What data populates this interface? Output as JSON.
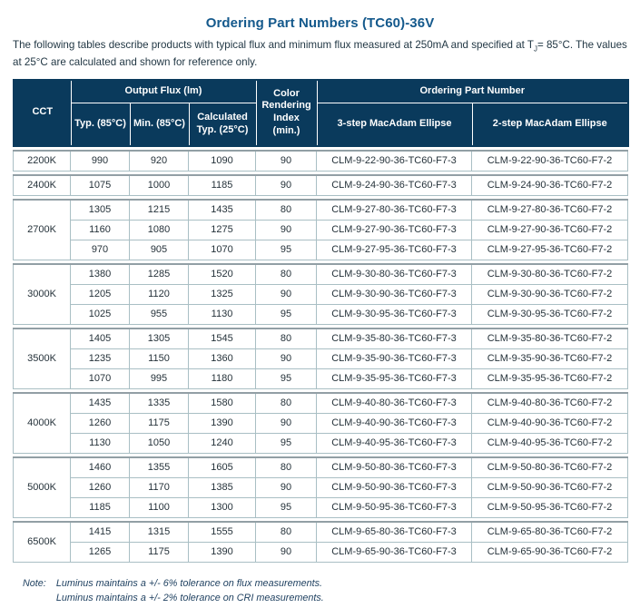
{
  "title": "Ordering Part Numbers (TC60)-36V",
  "intro": {
    "part1": "The following tables describe products with typical flux and minimum flux measured at 250mA and specified at T",
    "sub": "J",
    "part2": "= 85°C. The values at 25°C are calculated and shown for reference only."
  },
  "header": {
    "cct": "CCT",
    "output_flux": "Output Flux (lm)",
    "typ": "Typ. (85°C)",
    "min": "Min. (85°C)",
    "calc": "Calculated Typ. (25°C)",
    "cri": "Color Rendering Index (min.)",
    "opn": "Ordering Part Number",
    "step3": "3-step MacAdam Ellipse",
    "step2": "2-step MacAdam Ellipse"
  },
  "groups": [
    {
      "cct": "2200K",
      "rows": [
        {
          "typ": "990",
          "min": "920",
          "calc": "1090",
          "cri": "90",
          "pn3": "CLM-9-22-90-36-TC60-F7-3",
          "pn2": "CLM-9-22-90-36-TC60-F7-2"
        }
      ]
    },
    {
      "cct": "2400K",
      "rows": [
        {
          "typ": "1075",
          "min": "1000",
          "calc": "1185",
          "cri": "90",
          "pn3": "CLM-9-24-90-36-TC60-F7-3",
          "pn2": "CLM-9-24-90-36-TC60-F7-2"
        }
      ]
    },
    {
      "cct": "2700K",
      "rows": [
        {
          "typ": "1305",
          "min": "1215",
          "calc": "1435",
          "cri": "80",
          "pn3": "CLM-9-27-80-36-TC60-F7-3",
          "pn2": "CLM-9-27-80-36-TC60-F7-2"
        },
        {
          "typ": "1160",
          "min": "1080",
          "calc": "1275",
          "cri": "90",
          "pn3": "CLM-9-27-90-36-TC60-F7-3",
          "pn2": "CLM-9-27-90-36-TC60-F7-2"
        },
        {
          "typ": "970",
          "min": "905",
          "calc": "1070",
          "cri": "95",
          "pn3": "CLM-9-27-95-36-TC60-F7-3",
          "pn2": "CLM-9-27-95-36-TC60-F7-2"
        }
      ]
    },
    {
      "cct": "3000K",
      "rows": [
        {
          "typ": "1380",
          "min": "1285",
          "calc": "1520",
          "cri": "80",
          "pn3": "CLM-9-30-80-36-TC60-F7-3",
          "pn2": "CLM-9-30-80-36-TC60-F7-2"
        },
        {
          "typ": "1205",
          "min": "1120",
          "calc": "1325",
          "cri": "90",
          "pn3": "CLM-9-30-90-36-TC60-F7-3",
          "pn2": "CLM-9-30-90-36-TC60-F7-2"
        },
        {
          "typ": "1025",
          "min": "955",
          "calc": "1130",
          "cri": "95",
          "pn3": "CLM-9-30-95-36-TC60-F7-3",
          "pn2": "CLM-9-30-95-36-TC60-F7-2"
        }
      ]
    },
    {
      "cct": "3500K",
      "rows": [
        {
          "typ": "1405",
          "min": "1305",
          "calc": "1545",
          "cri": "80",
          "pn3": "CLM-9-35-80-36-TC60-F7-3",
          "pn2": "CLM-9-35-80-36-TC60-F7-2"
        },
        {
          "typ": "1235",
          "min": "1150",
          "calc": "1360",
          "cri": "90",
          "pn3": "CLM-9-35-90-36-TC60-F7-3",
          "pn2": "CLM-9-35-90-36-TC60-F7-2"
        },
        {
          "typ": "1070",
          "min": "995",
          "calc": "1180",
          "cri": "95",
          "pn3": "CLM-9-35-95-36-TC60-F7-3",
          "pn2": "CLM-9-35-95-36-TC60-F7-2"
        }
      ]
    },
    {
      "cct": "4000K",
      "rows": [
        {
          "typ": "1435",
          "min": "1335",
          "calc": "1580",
          "cri": "80",
          "pn3": "CLM-9-40-80-36-TC60-F7-3",
          "pn2": "CLM-9-40-80-36-TC60-F7-2"
        },
        {
          "typ": "1260",
          "min": "1175",
          "calc": "1390",
          "cri": "90",
          "pn3": "CLM-9-40-90-36-TC60-F7-3",
          "pn2": "CLM-9-40-90-36-TC60-F7-2"
        },
        {
          "typ": "1130",
          "min": "1050",
          "calc": "1240",
          "cri": "95",
          "pn3": "CLM-9-40-95-36-TC60-F7-3",
          "pn2": "CLM-9-40-95-36-TC60-F7-2"
        }
      ]
    },
    {
      "cct": "5000K",
      "rows": [
        {
          "typ": "1460",
          "min": "1355",
          "calc": "1605",
          "cri": "80",
          "pn3": "CLM-9-50-80-36-TC60-F7-3",
          "pn2": "CLM-9-50-80-36-TC60-F7-2"
        },
        {
          "typ": "1260",
          "min": "1170",
          "calc": "1385",
          "cri": "90",
          "pn3": "CLM-9-50-90-36-TC60-F7-3",
          "pn2": "CLM-9-50-90-36-TC60-F7-2"
        },
        {
          "typ": "1185",
          "min": "1100",
          "calc": "1300",
          "cri": "95",
          "pn3": "CLM-9-50-95-36-TC60-F7-3",
          "pn2": "CLM-9-50-95-36-TC60-F7-2"
        }
      ]
    },
    {
      "cct": "6500K",
      "rows": [
        {
          "typ": "1415",
          "min": "1315",
          "calc": "1555",
          "cri": "80",
          "pn3": "CLM-9-65-80-36-TC60-F7-3",
          "pn2": "CLM-9-65-80-36-TC60-F7-2"
        },
        {
          "typ": "1265",
          "min": "1175",
          "calc": "1390",
          "cri": "90",
          "pn3": "CLM-9-65-90-36-TC60-F7-3",
          "pn2": "CLM-9-65-90-36-TC60-F7-2"
        }
      ]
    }
  ],
  "note": {
    "label": "Note:",
    "line1": "Luminus maintains a +/- 6% tolerance on flux measurements.",
    "line2": "Luminus maintains a +/- 2% tolerance on CRI measurements."
  },
  "colors": {
    "header_bg": "#0a3a5c",
    "title_blue": "#14598c",
    "grid_line": "#a9bfc4"
  }
}
